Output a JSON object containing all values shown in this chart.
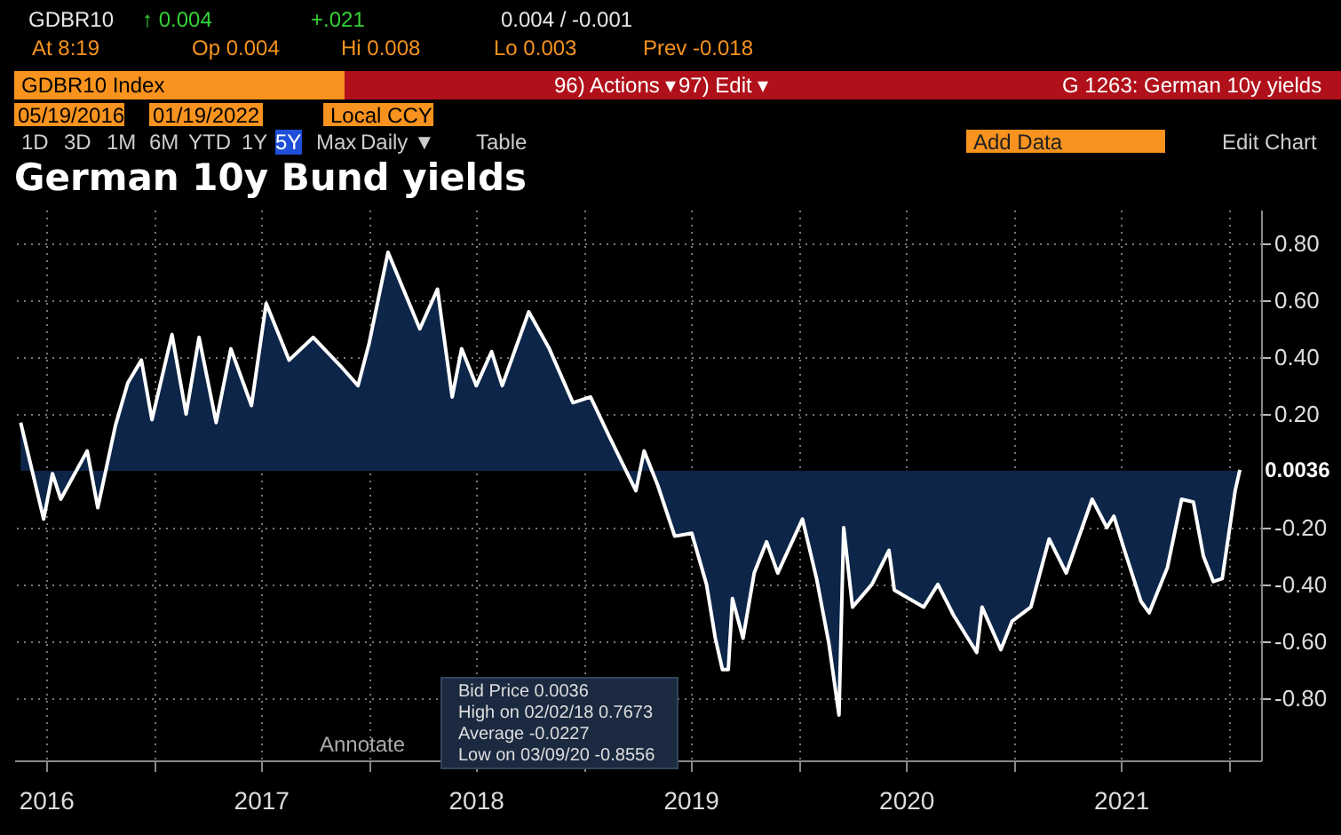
{
  "chart_data": {
    "type": "area",
    "title": "German 10y Bund yields",
    "x": [
      "2016-05-19",
      "2016-06-27",
      "2016-07-12",
      "2016-07-26",
      "2016-09-09",
      "2016-09-27",
      "2016-10-27",
      "2016-11-17",
      "2016-12-10",
      "2016-12-28",
      "2017-01-31",
      "2017-02-24",
      "2017-03-18",
      "2017-04-16",
      "2017-05-11",
      "2017-06-15",
      "2017-07-10",
      "2017-08-18",
      "2017-09-28",
      "2017-11-13",
      "2017-12-13",
      "2018-01-01",
      "2018-02-02",
      "2018-03-28",
      "2018-04-27",
      "2018-05-22",
      "2018-06-07",
      "2018-07-02",
      "2018-07-28",
      "2018-08-15",
      "2018-09-29",
      "2018-11-03",
      "2018-12-13",
      "2019-01-12",
      "2019-02-13",
      "2019-03-30",
      "2019-04-13",
      "2019-05-06",
      "2019-06-04",
      "2019-07-03",
      "2019-07-28",
      "2019-08-12",
      "2019-08-24",
      "2019-09-03",
      "2019-09-10",
      "2019-09-28",
      "2019-10-17",
      "2019-11-07",
      "2019-11-26",
      "2020-01-07",
      "2020-01-31",
      "2020-02-21",
      "2020-03-09",
      "2020-03-17",
      "2020-04-01",
      "2020-05-04",
      "2020-06-02",
      "2020-06-11",
      "2020-07-31",
      "2020-08-24",
      "2020-09-20",
      "2020-10-29",
      "2020-11-07",
      "2020-12-09",
      "2020-12-28",
      "2021-01-29",
      "2021-03-01",
      "2021-03-30",
      "2021-05-13",
      "2021-06-07",
      "2021-06-19",
      "2021-07-07",
      "2021-08-04",
      "2021-08-18",
      "2021-09-18",
      "2021-10-12",
      "2021-11-01",
      "2021-11-18",
      "2021-12-05",
      "2021-12-20",
      "2022-01-11",
      "2022-01-19"
    ],
    "series": [
      {
        "color": "#ffffff",
        "values": [
          0.17,
          -0.17,
          -0.01,
          -0.1,
          0.07,
          -0.13,
          0.16,
          0.31,
          0.39,
          0.18,
          0.48,
          0.2,
          0.47,
          0.17,
          0.43,
          0.23,
          0.59,
          0.39,
          0.47,
          0.37,
          0.3,
          0.45,
          0.77,
          0.5,
          0.64,
          0.26,
          0.43,
          0.3,
          0.42,
          0.3,
          0.56,
          0.43,
          0.24,
          0.26,
          0.12,
          -0.07,
          0.07,
          -0.05,
          -0.23,
          -0.22,
          -0.4,
          -0.59,
          -0.7,
          -0.7,
          -0.45,
          -0.59,
          -0.36,
          -0.25,
          -0.36,
          -0.17,
          -0.38,
          -0.61,
          -0.86,
          -0.2,
          -0.48,
          -0.4,
          -0.28,
          -0.42,
          -0.48,
          -0.4,
          -0.51,
          -0.64,
          -0.48,
          -0.63,
          -0.53,
          -0.48,
          -0.24,
          -0.36,
          -0.1,
          -0.2,
          -0.16,
          -0.28,
          -0.46,
          -0.5,
          -0.34,
          -0.1,
          -0.11,
          -0.3,
          -0.39,
          -0.38,
          -0.07,
          0.0036
        ],
        "value_labels": [
          null,
          null,
          null,
          null,
          null,
          null,
          null,
          null,
          null,
          null,
          null,
          null,
          null,
          null,
          null,
          null,
          null,
          null,
          null,
          null,
          null,
          null,
          null,
          null,
          null,
          null,
          null,
          null,
          null,
          null,
          null,
          null,
          null,
          null,
          null,
          null,
          null,
          null,
          null,
          null,
          null,
          null,
          null,
          null,
          null,
          null,
          null,
          null,
          null,
          null,
          null,
          null,
          null,
          null,
          null,
          null,
          null,
          null,
          null,
          null,
          null,
          null,
          null,
          null,
          null,
          null,
          null,
          null,
          null,
          null,
          null,
          null,
          null,
          null,
          null,
          null,
          null,
          null,
          null,
          null,
          null,
          "0.0036"
        ]
      }
    ],
    "xlim": [
      "2016-05-08",
      "2022-02-24"
    ],
    "xticks": [
      {
        "value": "2016-07-01",
        "label": "2016"
      },
      {
        "value": "2017-01-01",
        "label": null
      },
      {
        "value": "2017-07-01",
        "label": "2017"
      },
      {
        "value": "2018-01-01",
        "label": null
      },
      {
        "value": "2018-07-01",
        "label": "2018"
      },
      {
        "value": "2019-01-01",
        "label": null
      },
      {
        "value": "2019-07-01",
        "label": "2019"
      },
      {
        "value": "2020-01-01",
        "label": null
      },
      {
        "value": "2020-07-01",
        "label": "2020"
      },
      {
        "value": "2021-01-01",
        "label": null
      },
      {
        "value": "2021-07-01",
        "label": "2021"
      },
      {
        "value": "2022-01-01",
        "label": null
      }
    ],
    "ylim": [
      -1.02,
      0.92
    ],
    "yticks": [
      {
        "value": 0.8,
        "label": "0.80"
      },
      {
        "value": 0.6,
        "label": "0.60"
      },
      {
        "value": 0.4,
        "label": "0.40"
      },
      {
        "value": 0.2,
        "label": "0.20"
      },
      {
        "value": -0.2,
        "label": "-0.20"
      },
      {
        "value": -0.4,
        "label": "-0.40"
      },
      {
        "value": -0.6,
        "label": "-0.60"
      },
      {
        "value": -0.8,
        "label": "-0.80"
      }
    ],
    "grid": true,
    "annotations": [
      "GDBR10",
      "↑ 0.004",
      "+.021",
      "0.004 / -0.001",
      "At 8:19",
      "Op 0.004",
      "Hi 0.008",
      "Lo 0.003",
      "Prev -0.018",
      "GDBR10 Index",
      "96) Actions ▾",
      "97) Edit ▾",
      "G 1263: German 10y yields",
      "05/19/2016",
      "01/19/2022",
      "Local CCY",
      "1D",
      "3D",
      "1M",
      "6M",
      "YTD",
      "1Y",
      "5Y",
      "Max",
      "Daily ▼",
      "Table",
      "Add Data",
      "Edit Chart",
      "Annotate",
      "Bid Price 0.0036",
      "High on 02/02/18 0.7673",
      "Average -0.0227",
      "Low on 03/09/20 -0.8556"
    ]
  }
}
